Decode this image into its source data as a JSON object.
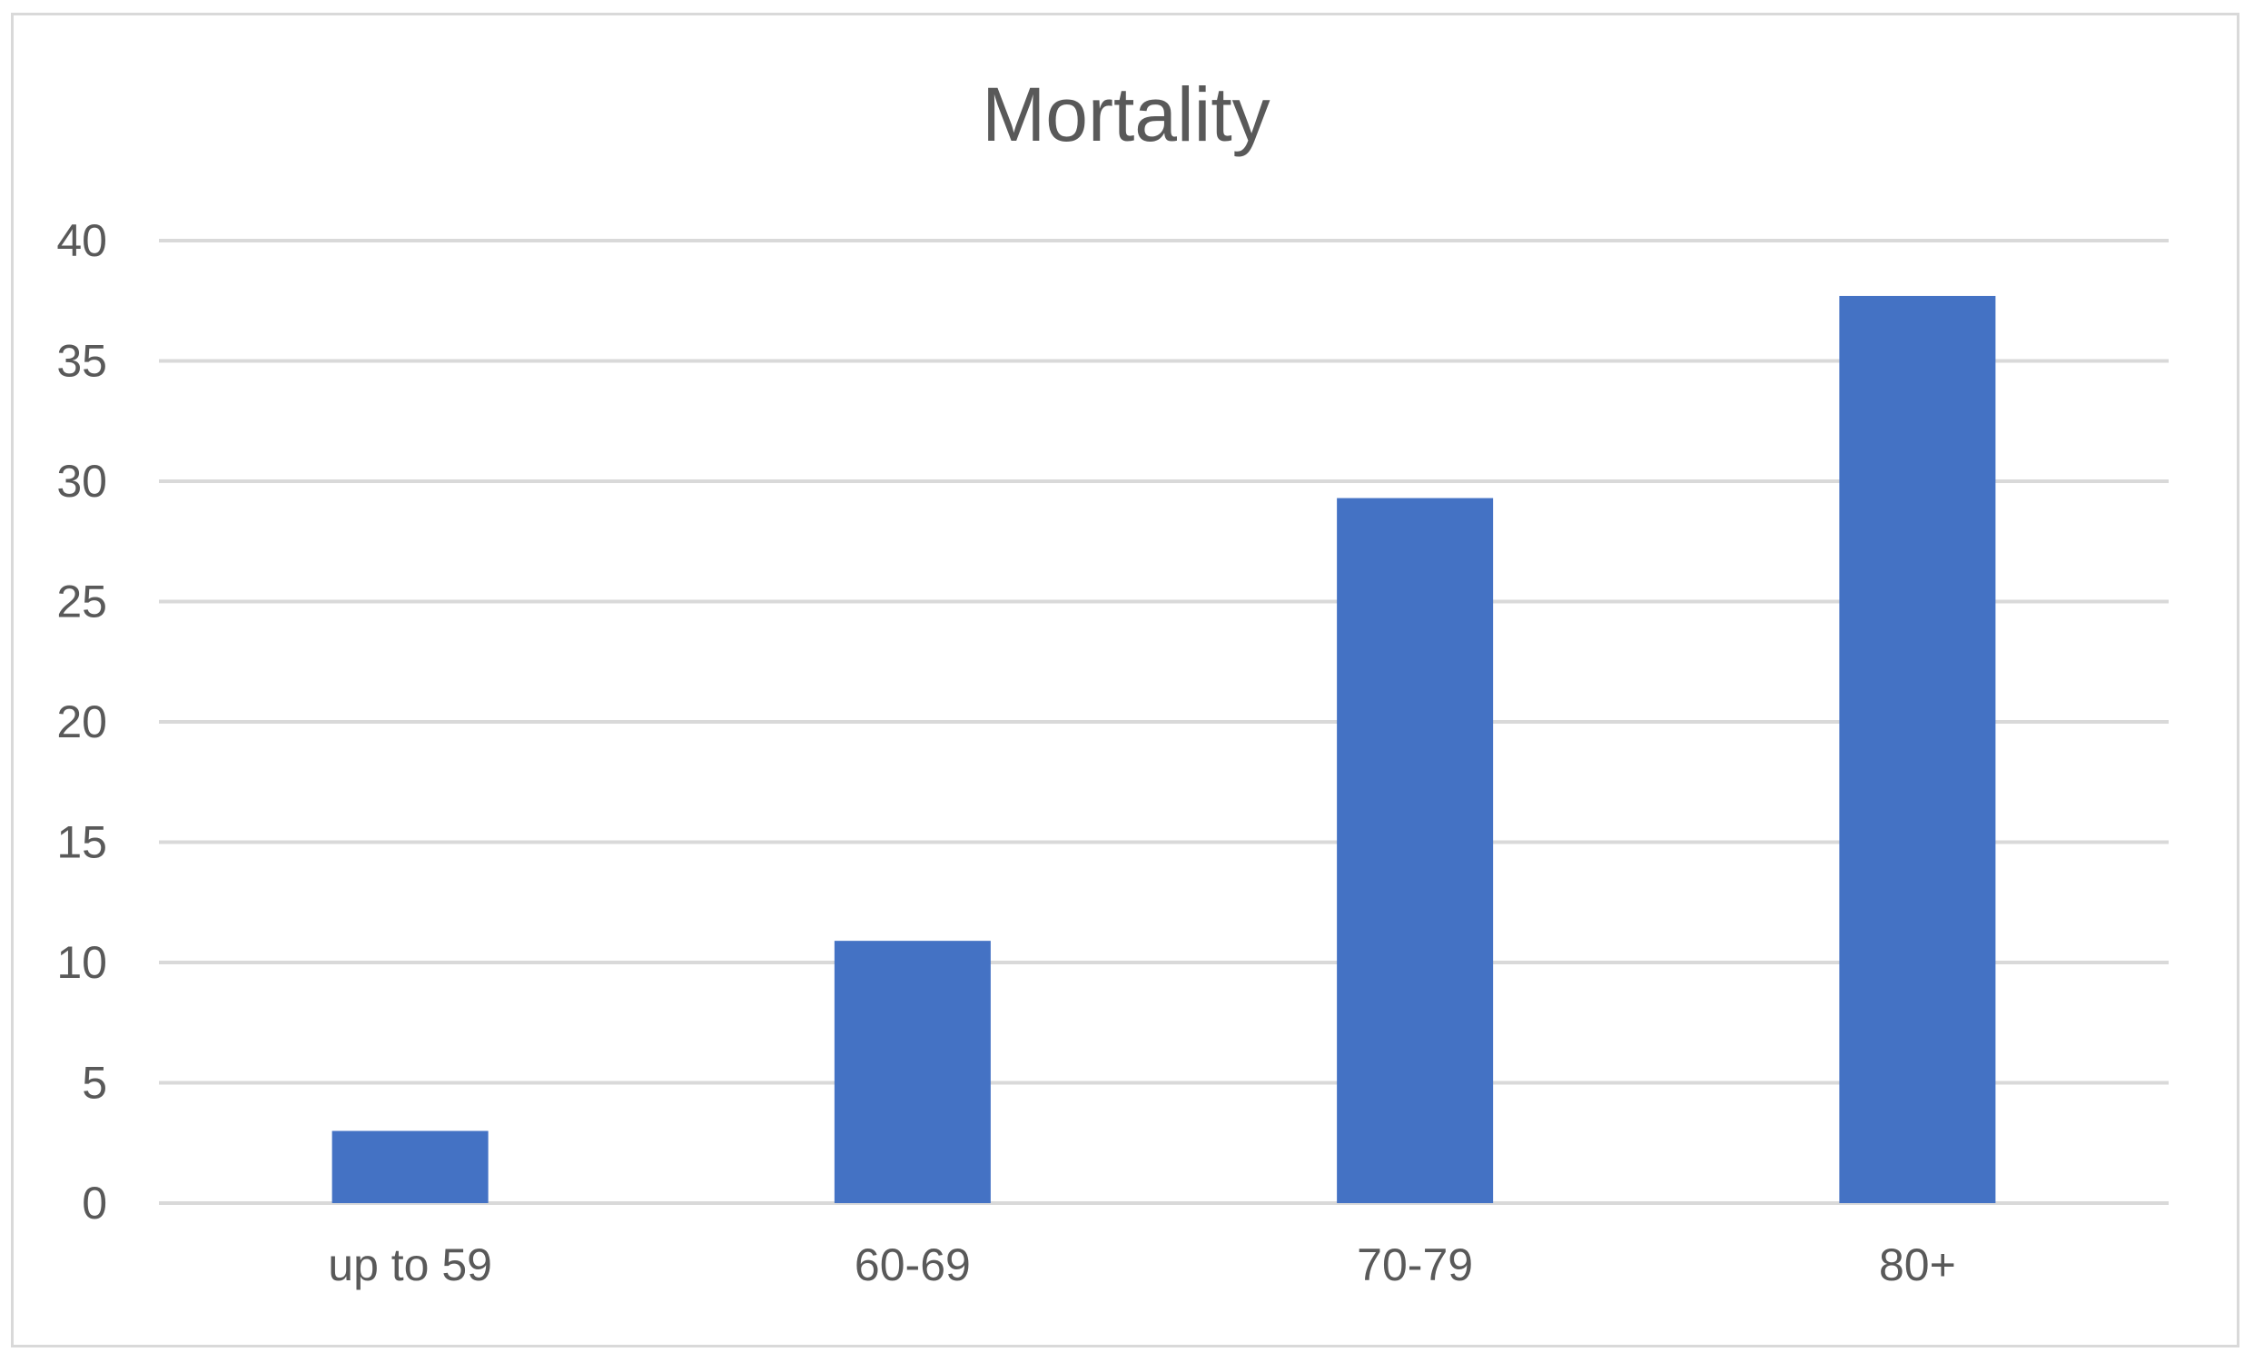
{
  "chart_data": {
    "type": "bar",
    "title": "Mortality",
    "xlabel": "",
    "ylabel": "",
    "categories": [
      "up to 59",
      "60-69",
      "70-79",
      "80+"
    ],
    "values": [
      3.0,
      10.9,
      29.3,
      37.7
    ],
    "ylim": [
      0,
      40
    ],
    "yticks": [
      0,
      5,
      10,
      15,
      20,
      25,
      30,
      35,
      40
    ],
    "grid": true,
    "legend": "none",
    "colors": {
      "bar": "#4472C4",
      "grid": "#d9d9d9",
      "text": "#595959",
      "border": "#d9d9d9"
    }
  }
}
